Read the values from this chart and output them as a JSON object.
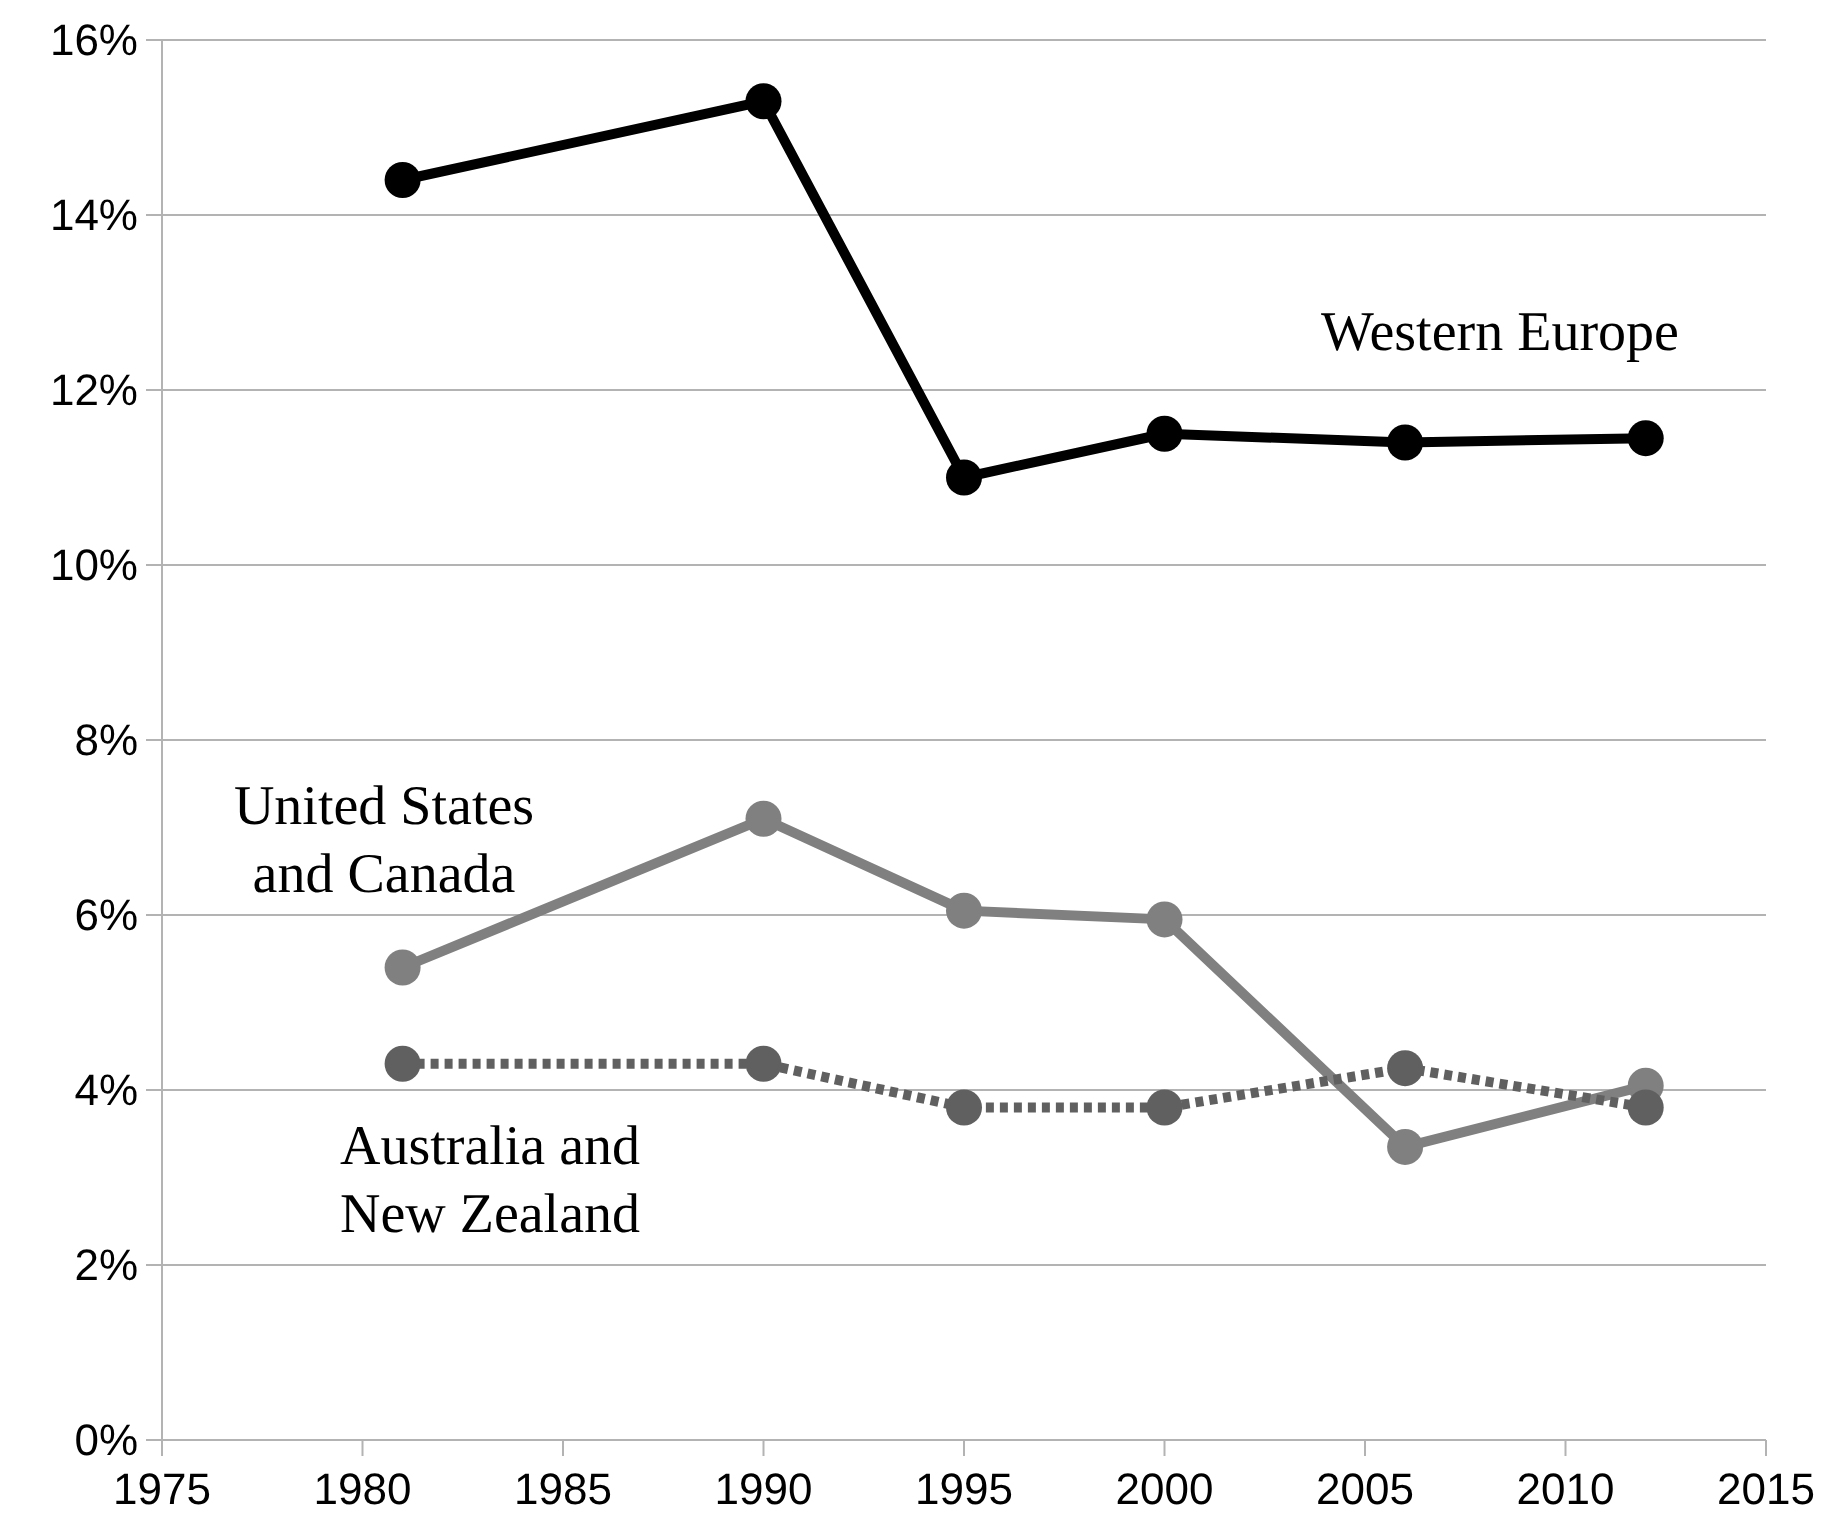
{
  "chart_data": {
    "type": "line",
    "x": [
      1981,
      1990,
      1995,
      2000,
      2006,
      2012
    ],
    "series": [
      {
        "name": "Western Europe",
        "color": "#000000",
        "values": [
          14.4,
          15.3,
          11.0,
          11.5,
          11.4,
          11.45
        ]
      },
      {
        "name": "United States and Canada",
        "color": "#808080",
        "values": [
          5.4,
          7.1,
          6.05,
          5.95,
          3.35,
          4.05
        ]
      },
      {
        "name": "Australia and New Zealand",
        "color": "#606060",
        "line_style": "dotted",
        "values": [
          4.3,
          4.3,
          3.8,
          3.8,
          4.25,
          3.8
        ]
      }
    ],
    "xlim": [
      1975,
      2015
    ],
    "xticks": [
      1975,
      1980,
      1985,
      1990,
      1995,
      2000,
      2005,
      2010,
      2015
    ],
    "ylim": [
      0,
      16
    ],
    "yticks": [
      {
        "value": 0,
        "label": "0%"
      },
      {
        "value": 2,
        "label": "2%"
      },
      {
        "value": 4,
        "label": "4%"
      },
      {
        "value": 6,
        "label": "6%"
      },
      {
        "value": 8,
        "label": "8%"
      },
      {
        "value": 10,
        "label": "10%"
      },
      {
        "value": 12,
        "label": "12%"
      },
      {
        "value": 14,
        "label": "14%"
      },
      {
        "value": 16,
        "label": "16%"
      }
    ],
    "grid": "y",
    "marker": "circle",
    "line_style": "solid"
  }
}
